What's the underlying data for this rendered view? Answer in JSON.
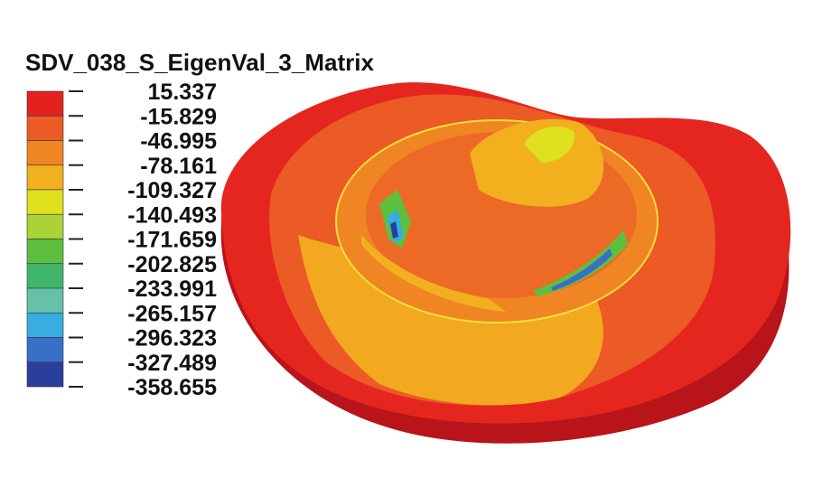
{
  "legend": {
    "title": "SDV_038_S_EigenVal_3_Matrix",
    "levels": [
      "15.337",
      "-15.829",
      "-46.995",
      "-78.161",
      "-109.327",
      "-140.493",
      "-171.659",
      "-202.825",
      "-233.991",
      "-265.157",
      "-296.323",
      "-327.489",
      "-358.655"
    ],
    "colors": [
      "#e3221f",
      "#ec5a26",
      "#f08524",
      "#f2b01e",
      "#dfe01e",
      "#a9d336",
      "#5dbf3e",
      "#3fb56a",
      "#64c2a8",
      "#37ade2",
      "#3a6fc6",
      "#2a3f9c"
    ]
  }
}
